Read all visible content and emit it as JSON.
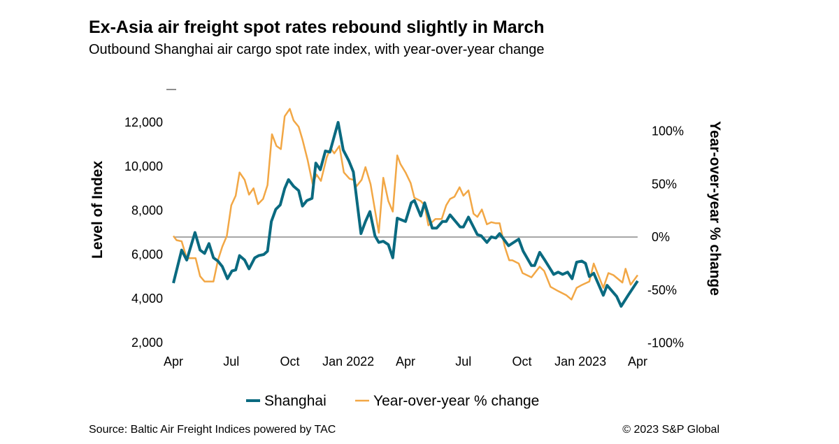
{
  "header": {
    "title": "Ex-Asia air freight spot rates rebound slightly in March",
    "subtitle": "Outbound Shanghai air cargo spot rate index, with year-over-year change"
  },
  "footer": {
    "source": "Source: Baltic Air Freight Indices powered by TAC",
    "copyright": "© 2023 S&P Global"
  },
  "chart_data": {
    "type": "line",
    "title": "Ex-Asia air freight spot rates rebound slightly in March",
    "subtitle": "Outbound Shanghai air cargo spot rate index, with year-over-year change",
    "ylabel": "Level of Index",
    "y2label": "Year-over-year % change",
    "ylim": [
      2000,
      12500
    ],
    "y2lim": [
      -100,
      120
    ],
    "xlim": [
      "2021-04-01",
      "2023-04-01"
    ],
    "yticks": [
      2000,
      4000,
      6000,
      8000,
      10000,
      12000
    ],
    "ytick_labels": [
      "2,000",
      "4,000",
      "6,000",
      "8,000",
      "10,000",
      "12,000"
    ],
    "y2ticks": [
      -100,
      -50,
      0,
      50,
      100
    ],
    "y2tick_labels": [
      "-100%",
      "-50%",
      "0%",
      "50%",
      "100%"
    ],
    "xticks": [
      "2021-04-01",
      "2021-07-01",
      "2021-10-01",
      "2022-01-01",
      "2022-04-01",
      "2022-07-01",
      "2022-10-01",
      "2023-01-01",
      "2023-04-01"
    ],
    "xtick_labels": [
      "Apr",
      "Jul",
      "Oct",
      "Jan 2022",
      "Apr",
      "Jul",
      "Oct",
      "Jan 2023",
      "Apr"
    ],
    "zero_line_on": "y2",
    "grid": false,
    "legend_position": "bottom",
    "series": [
      {
        "name": "Shanghai",
        "axis": "left",
        "color": "#0a6a80",
        "points": [
          [
            "2021-04-01",
            4700
          ],
          [
            "2021-04-14",
            6200
          ],
          [
            "2021-04-22",
            5750
          ],
          [
            "2021-05-05",
            7000
          ],
          [
            "2021-05-13",
            6200
          ],
          [
            "2021-05-20",
            6050
          ],
          [
            "2021-05-27",
            6500
          ],
          [
            "2021-06-03",
            5850
          ],
          [
            "2021-06-10",
            5700
          ],
          [
            "2021-06-17",
            5450
          ],
          [
            "2021-06-25",
            4900
          ],
          [
            "2021-07-02",
            5250
          ],
          [
            "2021-07-08",
            5300
          ],
          [
            "2021-07-14",
            5950
          ],
          [
            "2021-07-22",
            5750
          ],
          [
            "2021-07-29",
            5350
          ],
          [
            "2021-08-07",
            5850
          ],
          [
            "2021-08-13",
            5950
          ],
          [
            "2021-08-21",
            6000
          ],
          [
            "2021-08-27",
            6150
          ],
          [
            "2021-09-02",
            7500
          ],
          [
            "2021-09-09",
            8050
          ],
          [
            "2021-09-16",
            8250
          ],
          [
            "2021-09-23",
            9000
          ],
          [
            "2021-09-29",
            9400
          ],
          [
            "2021-10-07",
            9100
          ],
          [
            "2021-10-15",
            8900
          ],
          [
            "2021-10-21",
            8200
          ],
          [
            "2021-10-28",
            8450
          ],
          [
            "2021-11-05",
            8550
          ],
          [
            "2021-11-11",
            10150
          ],
          [
            "2021-11-18",
            9850
          ],
          [
            "2021-11-26",
            10700
          ],
          [
            "2021-12-03",
            10650
          ],
          [
            "2021-12-16",
            12000
          ],
          [
            "2021-12-24",
            10750
          ],
          [
            "2022-01-02",
            10250
          ],
          [
            "2022-01-09",
            9750
          ],
          [
            "2022-01-21",
            6950
          ],
          [
            "2022-01-28",
            7500
          ],
          [
            "2022-02-04",
            7950
          ],
          [
            "2022-02-12",
            6850
          ],
          [
            "2022-02-18",
            6550
          ],
          [
            "2022-02-25",
            6600
          ],
          [
            "2022-03-05",
            6450
          ],
          [
            "2022-03-12",
            5850
          ],
          [
            "2022-03-19",
            7650
          ],
          [
            "2022-04-01",
            7500
          ],
          [
            "2022-04-10",
            8350
          ],
          [
            "2022-04-15",
            8450
          ],
          [
            "2022-04-25",
            7750
          ],
          [
            "2022-05-01",
            8350
          ],
          [
            "2022-05-13",
            7200
          ],
          [
            "2022-05-20",
            7200
          ],
          [
            "2022-05-29",
            7500
          ],
          [
            "2022-06-04",
            7500
          ],
          [
            "2022-06-10",
            7800
          ],
          [
            "2022-06-26",
            7250
          ],
          [
            "2022-07-01",
            7250
          ],
          [
            "2022-07-09",
            7700
          ],
          [
            "2022-07-23",
            6900
          ],
          [
            "2022-07-29",
            6850
          ],
          [
            "2022-08-07",
            6550
          ],
          [
            "2022-08-14",
            6800
          ],
          [
            "2022-08-21",
            6750
          ],
          [
            "2022-08-27",
            6950
          ],
          [
            "2022-09-10",
            6400
          ],
          [
            "2022-09-26",
            6700
          ],
          [
            "2022-10-03",
            6150
          ],
          [
            "2022-10-16",
            5500
          ],
          [
            "2022-10-21",
            5500
          ],
          [
            "2022-10-29",
            6100
          ],
          [
            "2022-11-07",
            5700
          ],
          [
            "2022-11-20",
            5100
          ],
          [
            "2022-11-27",
            5200
          ],
          [
            "2022-12-04",
            5100
          ],
          [
            "2022-12-12",
            5200
          ],
          [
            "2022-12-19",
            4900
          ],
          [
            "2022-12-26",
            5650
          ],
          [
            "2023-01-03",
            5700
          ],
          [
            "2023-01-09",
            5600
          ],
          [
            "2023-01-15",
            5000
          ],
          [
            "2023-01-22",
            5150
          ],
          [
            "2023-02-06",
            4150
          ],
          [
            "2023-02-12",
            4600
          ],
          [
            "2023-02-27",
            4100
          ],
          [
            "2023-03-06",
            3650
          ],
          [
            "2023-03-17",
            4150
          ],
          [
            "2023-04-01",
            4800
          ]
        ]
      },
      {
        "name": "Year-over-year % change",
        "axis": "right",
        "color": "#f2a745",
        "points": [
          [
            "2021-04-01",
            1
          ],
          [
            "2021-04-06",
            -3
          ],
          [
            "2021-04-14",
            -4
          ],
          [
            "2021-04-22",
            -20
          ],
          [
            "2021-05-06",
            -20
          ],
          [
            "2021-05-13",
            -37
          ],
          [
            "2021-05-20",
            -42
          ],
          [
            "2021-05-27",
            -42
          ],
          [
            "2021-06-03",
            -42
          ],
          [
            "2021-06-10",
            -22
          ],
          [
            "2021-06-17",
            -9
          ],
          [
            "2021-06-24",
            1
          ],
          [
            "2021-07-01",
            30
          ],
          [
            "2021-07-08",
            39
          ],
          [
            "2021-07-14",
            61
          ],
          [
            "2021-07-22",
            54
          ],
          [
            "2021-07-29",
            40
          ],
          [
            "2021-08-05",
            46
          ],
          [
            "2021-08-12",
            31
          ],
          [
            "2021-08-20",
            36
          ],
          [
            "2021-08-27",
            49
          ],
          [
            "2021-09-03",
            97
          ],
          [
            "2021-09-10",
            86
          ],
          [
            "2021-09-17",
            83
          ],
          [
            "2021-09-23",
            114
          ],
          [
            "2021-10-01",
            121
          ],
          [
            "2021-10-07",
            110
          ],
          [
            "2021-10-15",
            104
          ],
          [
            "2021-10-21",
            92
          ],
          [
            "2021-10-29",
            73
          ],
          [
            "2021-11-06",
            50
          ],
          [
            "2021-11-12",
            59
          ],
          [
            "2021-11-19",
            53
          ],
          [
            "2021-11-28",
            75
          ],
          [
            "2021-12-04",
            84
          ],
          [
            "2021-12-10",
            79
          ],
          [
            "2021-12-18",
            86
          ],
          [
            "2021-12-25",
            61
          ],
          [
            "2022-01-03",
            55
          ],
          [
            "2022-01-09",
            54
          ],
          [
            "2022-01-14",
            48
          ],
          [
            "2022-01-22",
            54
          ],
          [
            "2022-01-28",
            66
          ],
          [
            "2022-02-05",
            50
          ],
          [
            "2022-02-18",
            4
          ],
          [
            "2022-02-25",
            56
          ],
          [
            "2022-03-05",
            34
          ],
          [
            "2022-03-12",
            24
          ],
          [
            "2022-03-19",
            77
          ],
          [
            "2022-03-24",
            69
          ],
          [
            "2022-04-01",
            61
          ],
          [
            "2022-04-09",
            51
          ],
          [
            "2022-04-15",
            37
          ],
          [
            "2022-04-25",
            34
          ],
          [
            "2022-05-01",
            30
          ],
          [
            "2022-05-07",
            11
          ],
          [
            "2022-05-18",
            17
          ],
          [
            "2022-05-28",
            17
          ],
          [
            "2022-06-04",
            30
          ],
          [
            "2022-06-10",
            36
          ],
          [
            "2022-06-17",
            38
          ],
          [
            "2022-06-25",
            47
          ],
          [
            "2022-07-01",
            39
          ],
          [
            "2022-07-09",
            44
          ],
          [
            "2022-07-17",
            22
          ],
          [
            "2022-07-23",
            19
          ],
          [
            "2022-07-30",
            26
          ],
          [
            "2022-08-07",
            12
          ],
          [
            "2022-08-14",
            14
          ],
          [
            "2022-08-21",
            13
          ],
          [
            "2022-08-27",
            13
          ],
          [
            "2022-09-04",
            -9
          ],
          [
            "2022-09-11",
            -22
          ],
          [
            "2022-09-16",
            -22
          ],
          [
            "2022-09-26",
            -25
          ],
          [
            "2022-10-02",
            -34
          ],
          [
            "2022-10-16",
            -38
          ],
          [
            "2022-10-29",
            -28
          ],
          [
            "2022-11-05",
            -32
          ],
          [
            "2022-11-15",
            -47
          ],
          [
            "2022-11-27",
            -51
          ],
          [
            "2022-12-10",
            -55
          ],
          [
            "2022-12-18",
            -59
          ],
          [
            "2022-12-26",
            -48
          ],
          [
            "2023-01-04",
            -45
          ],
          [
            "2023-01-15",
            -42
          ],
          [
            "2023-01-22",
            -25
          ],
          [
            "2023-02-06",
            -48
          ],
          [
            "2023-02-14",
            -34
          ],
          [
            "2023-02-22",
            -36
          ],
          [
            "2023-03-08",
            -43
          ],
          [
            "2023-03-13",
            -30
          ],
          [
            "2023-03-21",
            -45
          ],
          [
            "2023-04-01",
            -36
          ]
        ]
      }
    ]
  }
}
